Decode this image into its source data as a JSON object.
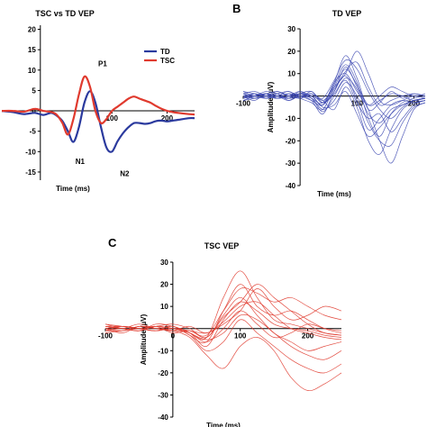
{
  "chart_data": [
    {
      "id": "A",
      "type": "line",
      "panel_label": "",
      "title": "TSC vs TD VEP",
      "xlabel": "Time (ms)",
      "ylabel": "",
      "xlim": [
        -100,
        250
      ],
      "ylim": [
        -17,
        21
      ],
      "x_ticks": [
        {
          "v": 100,
          "label": "100"
        },
        {
          "v": 200,
          "label": "200"
        }
      ],
      "y_ticks": [
        {
          "v": 20,
          "label": "20"
        },
        {
          "v": 15,
          "label": "15"
        },
        {
          "v": 10,
          "label": "10"
        },
        {
          "v": 5,
          "label": "5"
        },
        {
          "v": 0,
          "label": "0"
        },
        {
          "v": -5,
          "label": "-5"
        },
        {
          "v": -10,
          "label": "-10"
        },
        {
          "v": -15,
          "label": "-15"
        }
      ],
      "legend": {
        "position": "top-right",
        "entries": [
          {
            "name": "TD",
            "color": "#2b3a9e"
          },
          {
            "name": "TSC",
            "color": "#e03a2e"
          }
        ]
      },
      "annotations": [
        {
          "text": "P1",
          "x": 83,
          "y": 11
        },
        {
          "text": "N1",
          "x": 42,
          "y": -13
        },
        {
          "text": "N2",
          "x": 123,
          "y": -16
        }
      ],
      "series": [
        {
          "name": "TD",
          "color": "#2b3a9e",
          "x": [
            -100,
            -80,
            -60,
            -40,
            -25,
            -10,
            0,
            10,
            20,
            30,
            40,
            50,
            60,
            70,
            80,
            90,
            100,
            110,
            120,
            130,
            140,
            150,
            160,
            170,
            180,
            190,
            200,
            210,
            220,
            240,
            250
          ],
          "y": [
            0,
            -0.3,
            -0.8,
            -0.5,
            -1.0,
            -0.5,
            -1.2,
            -2.5,
            -5,
            -7.6,
            -4,
            2,
            4.8,
            2,
            -4,
            -9,
            -10,
            -7.5,
            -5.5,
            -4,
            -3,
            -3,
            -3.2,
            -3,
            -2.5,
            -2.4,
            -2.6,
            -2.4,
            -2.2,
            -1.8,
            -1.8
          ]
        },
        {
          "name": "TSC",
          "color": "#e03a2e",
          "x": [
            -100,
            -80,
            -60,
            -40,
            -25,
            -10,
            0,
            10,
            20,
            30,
            40,
            50,
            60,
            70,
            80,
            90,
            100,
            110,
            120,
            130,
            140,
            150,
            160,
            170,
            180,
            190,
            200,
            210,
            220,
            240,
            250
          ],
          "y": [
            0,
            0,
            -0.2,
            0.5,
            0,
            -0.3,
            -1,
            -3,
            -5.8,
            -2,
            4,
            8.4,
            6,
            0,
            -3,
            -2,
            0,
            1,
            2,
            3,
            3.5,
            3,
            2.5,
            2,
            1.2,
            0.5,
            0,
            -0.3,
            -0.5,
            -0.8,
            -0.9
          ]
        }
      ]
    },
    {
      "id": "B",
      "type": "line",
      "panel_label": "B",
      "title": "TD VEP",
      "xlabel": "Time (ms)",
      "ylabel": "Amplitude (µV)",
      "xlim": [
        -100,
        220
      ],
      "ylim": [
        -40,
        30
      ],
      "x_ticks": [
        {
          "v": -100,
          "label": "-100"
        },
        {
          "v": 100,
          "label": "100"
        },
        {
          "v": 200,
          "label": "200"
        }
      ],
      "y_ticks": [
        {
          "v": 30,
          "label": "30"
        },
        {
          "v": 20,
          "label": "20"
        },
        {
          "v": 10,
          "label": "10"
        },
        {
          "v": 0,
          "label": "0"
        },
        {
          "v": -10,
          "label": "-10"
        },
        {
          "v": -20,
          "label": "-20"
        },
        {
          "v": -30,
          "label": "-30"
        },
        {
          "v": -40,
          "label": "-40"
        }
      ],
      "x": [
        -100,
        -80,
        -60,
        -40,
        -20,
        0,
        20,
        40,
        60,
        80,
        100,
        120,
        140,
        160,
        180,
        200,
        220
      ],
      "series": [
        {
          "color": "#3a45b0",
          "values": [
            2,
            1,
            -1,
            0,
            2,
            -1,
            -3,
            -6,
            4,
            12,
            5,
            -4,
            -2,
            1,
            0,
            -2,
            -1
          ]
        },
        {
          "color": "#3a45b0",
          "values": [
            -2,
            0,
            1,
            -1,
            0,
            2,
            -1,
            -3,
            6,
            18,
            8,
            -6,
            -3,
            2,
            -1,
            1,
            0
          ]
        },
        {
          "color": "#3a45b0",
          "values": [
            0,
            -1,
            0,
            1,
            -2,
            0,
            -2,
            -8,
            2,
            9,
            -2,
            -15,
            -10,
            -4,
            -2,
            -3,
            -2
          ]
        },
        {
          "color": "#3a45b0",
          "values": [
            1,
            2,
            0,
            -1,
            0,
            1,
            0,
            -4,
            5,
            14,
            6,
            -10,
            -18,
            -8,
            -3,
            -1,
            0
          ]
        },
        {
          "color": "#3a45b0",
          "values": [
            -1,
            0,
            2,
            1,
            -1,
            0,
            1,
            -2,
            -6,
            4,
            -5,
            -20,
            -26,
            -15,
            -6,
            -3,
            -2
          ]
        },
        {
          "color": "#3a45b0",
          "values": [
            0,
            1,
            -1,
            0,
            1,
            -1,
            2,
            -3,
            1,
            8,
            3,
            -8,
            -12,
            -6,
            -4,
            -2,
            -1
          ]
        },
        {
          "color": "#3a45b0",
          "values": [
            2,
            0,
            1,
            2,
            0,
            1,
            -1,
            -6,
            -2,
            6,
            0,
            -12,
            -20,
            -22,
            -12,
            -5,
            -3
          ]
        },
        {
          "color": "#3a45b0",
          "values": [
            -2,
            -1,
            0,
            -1,
            1,
            0,
            -2,
            -4,
            3,
            11,
            15,
            4,
            -4,
            -2,
            0,
            1,
            0
          ]
        },
        {
          "color": "#3a45b0",
          "values": [
            0,
            0,
            1,
            0,
            -1,
            2,
            0,
            -1,
            7,
            16,
            12,
            2,
            -6,
            -10,
            -5,
            -2,
            -1
          ]
        },
        {
          "color": "#3a45b0",
          "values": [
            1,
            -1,
            0,
            2,
            0,
            -1,
            0,
            -5,
            -4,
            2,
            -8,
            -18,
            -14,
            -8,
            -4,
            -2,
            -1
          ]
        },
        {
          "color": "#3a45b0",
          "values": [
            -1,
            1,
            0,
            0,
            -2,
            1,
            2,
            -2,
            4,
            10,
            20,
            10,
            -2,
            -4,
            -2,
            0,
            -1
          ]
        },
        {
          "color": "#3a45b0",
          "values": [
            0,
            -2,
            1,
            -1,
            0,
            0,
            -1,
            -7,
            0,
            7,
            -3,
            -10,
            -8,
            -16,
            -10,
            -4,
            -2
          ]
        },
        {
          "color": "#3a45b0",
          "values": [
            1,
            0,
            -1,
            1,
            2,
            0,
            1,
            -3,
            2,
            13,
            4,
            -6,
            -20,
            -30,
            -18,
            -6,
            -3
          ]
        },
        {
          "color": "#3a45b0",
          "values": [
            -1,
            0,
            1,
            0,
            -1,
            1,
            0,
            -4,
            6,
            10,
            2,
            -4,
            0,
            4,
            2,
            0,
            1
          ]
        }
      ]
    },
    {
      "id": "C",
      "type": "line",
      "panel_label": "C",
      "title": "TSC VEP",
      "xlabel": "Time (ms)",
      "ylabel": "Amplitude (µV)",
      "xlim": [
        -100,
        250
      ],
      "ylim": [
        -40,
        30
      ],
      "x_ticks": [
        {
          "v": -100,
          "label": "-100"
        },
        {
          "v": 0,
          "label": "0"
        },
        {
          "v": 100,
          "label": "100"
        },
        {
          "v": 200,
          "label": "200"
        }
      ],
      "y_ticks": [
        {
          "v": 30,
          "label": "30"
        },
        {
          "v": 20,
          "label": "20"
        },
        {
          "v": 10,
          "label": "10"
        },
        {
          "v": 0,
          "label": "0"
        },
        {
          "v": -10,
          "label": "-10"
        },
        {
          "v": -20,
          "label": "-20"
        },
        {
          "v": -30,
          "label": "-30"
        },
        {
          "v": -40,
          "label": "-40"
        }
      ],
      "x": [
        -100,
        -75,
        -50,
        -25,
        0,
        25,
        50,
        75,
        100,
        125,
        150,
        175,
        200,
        225,
        250
      ],
      "series": [
        {
          "color": "#e03a2e",
          "values": [
            1,
            0,
            -1,
            1,
            0,
            -2,
            -4,
            14,
            26,
            14,
            4,
            2,
            0,
            -2,
            -3
          ]
        },
        {
          "color": "#e03a2e",
          "values": [
            -1,
            1,
            0,
            -1,
            1,
            -3,
            -6,
            8,
            20,
            10,
            6,
            8,
            4,
            0,
            -2
          ]
        },
        {
          "color": "#e03a2e",
          "values": [
            0,
            -1,
            1,
            0,
            -1,
            -2,
            -8,
            4,
            12,
            8,
            2,
            0,
            -1,
            -3,
            -4
          ]
        },
        {
          "color": "#e03a2e",
          "values": [
            2,
            0,
            -1,
            1,
            0,
            -1,
            -2,
            2,
            8,
            18,
            10,
            4,
            6,
            10,
            8
          ]
        },
        {
          "color": "#e03a2e",
          "values": [
            -2,
            -1,
            0,
            1,
            2,
            0,
            -4,
            6,
            14,
            6,
            -2,
            -6,
            -10,
            -8,
            -6
          ]
        },
        {
          "color": "#e03a2e",
          "values": [
            1,
            1,
            0,
            -1,
            0,
            -3,
            -10,
            -6,
            4,
            -2,
            -8,
            -14,
            -18,
            -20,
            -16
          ]
        },
        {
          "color": "#e03a2e",
          "values": [
            0,
            -2,
            1,
            0,
            -1,
            1,
            -2,
            3,
            10,
            12,
            6,
            0,
            -2,
            -4,
            -5
          ]
        },
        {
          "color": "#e03a2e",
          "values": [
            -1,
            0,
            -1,
            2,
            1,
            -2,
            -5,
            -2,
            6,
            4,
            -2,
            -8,
            -12,
            -14,
            -10
          ]
        },
        {
          "color": "#e03a2e",
          "values": [
            1,
            0,
            2,
            0,
            -1,
            -4,
            -12,
            -18,
            -8,
            -4,
            -10,
            -22,
            -28,
            -25,
            -20
          ]
        },
        {
          "color": "#e03a2e",
          "values": [
            0,
            1,
            0,
            -1,
            0,
            -1,
            -3,
            8,
            18,
            16,
            12,
            14,
            10,
            6,
            4
          ]
        },
        {
          "color": "#e03a2e",
          "values": [
            -1,
            -1,
            1,
            0,
            1,
            -2,
            -6,
            0,
            8,
            2,
            -4,
            -2,
            2,
            0,
            -1
          ]
        },
        {
          "color": "#e03a2e",
          "values": [
            2,
            1,
            0,
            1,
            -2,
            -1,
            -4,
            5,
            12,
            20,
            14,
            8,
            2,
            -2,
            -3
          ]
        }
      ]
    }
  ]
}
